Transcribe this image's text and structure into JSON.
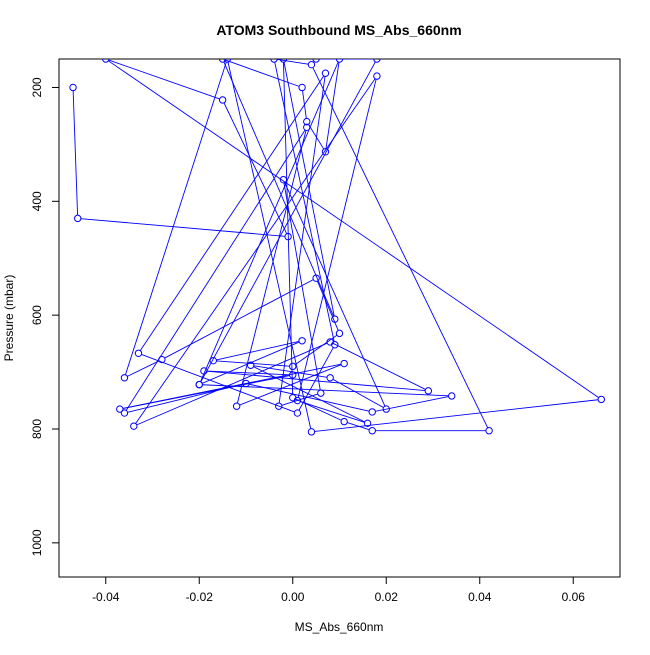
{
  "chart_data": {
    "type": "line",
    "title": "ATOM3 Southbound MS_Abs_660nm",
    "xlabel": "MS_Abs_660nm",
    "ylabel": "Pressure (mbar)",
    "xlim": [
      -0.05,
      0.07
    ],
    "ylim": [
      1060,
      150
    ],
    "y_reversed": true,
    "x_ticks": [
      -0.04,
      -0.02,
      0.0,
      0.02,
      0.04,
      0.06
    ],
    "x_tick_labels": [
      "-0.04",
      "-0.02",
      "0.00",
      "0.02",
      "0.04",
      "0.06"
    ],
    "y_ticks": [
      200,
      400,
      600,
      800,
      1000
    ],
    "y_tick_labels": [
      "200",
      "400",
      "600",
      "800",
      "1000"
    ],
    "grid": false,
    "series_color": "#0000ff",
    "marker": "open-circle",
    "series": [
      {
        "x": [
          -0.047,
          -0.046,
          -0.001,
          -0.015,
          -0.04,
          0.066,
          0.004,
          -0.014,
          -0.036,
          -0.028,
          0.005,
          0.01,
          0.0,
          -0.017,
          0.002,
          -0.02,
          0.034,
          0.017,
          -0.01,
          -0.036,
          0.003,
          -0.012,
          0.011,
          -0.037,
          0.0,
          -0.019,
          0.029,
          0.008,
          -0.034,
          0.018,
          0.001,
          0.016,
          -0.009,
          0.008,
          0.02,
          -0.002,
          0.006,
          -0.003,
          0.007,
          -0.033,
          0.001,
          0.009,
          -0.004,
          0.004,
          0.042,
          0.017,
          0.011,
          0.0,
          -0.002,
          0.009,
          -0.015,
          0.002,
          0.003,
          0.007,
          0.01,
          -0.02,
          0.018,
          0.005
        ],
        "y": [
          200,
          430,
          462,
          222,
          150,
          748,
          805,
          150,
          710,
          678,
          535,
          632,
          690,
          680,
          645,
          722,
          742,
          770,
          720,
          772,
          270,
          760,
          685,
          765,
          705,
          698,
          733,
          647,
          795,
          180,
          750,
          790,
          688,
          710,
          765,
          362,
          737,
          760,
          175,
          667,
          772,
          652,
          150,
          160,
          803,
          803,
          787,
          745,
          150,
          607,
          150,
          200,
          260,
          313,
          150,
          722,
          150,
          150
        ]
      }
    ]
  }
}
